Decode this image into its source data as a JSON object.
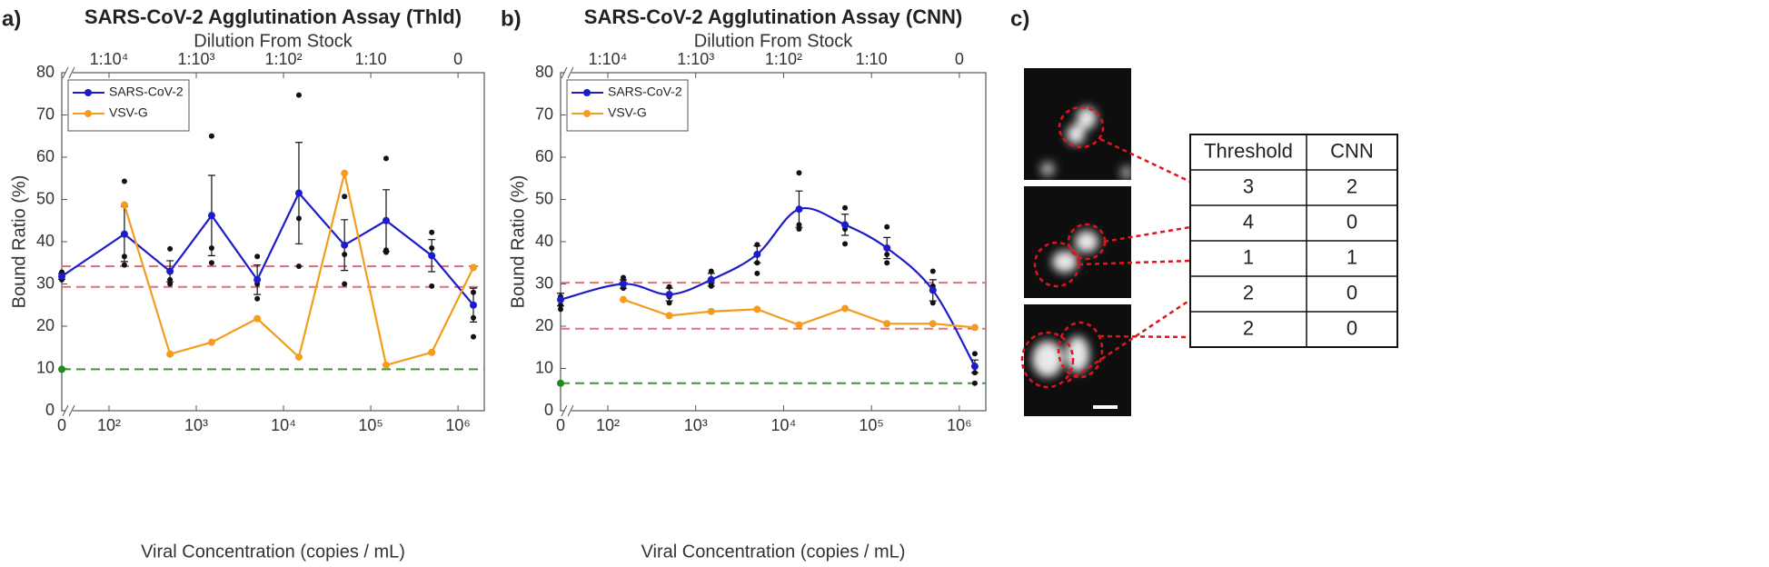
{
  "chart_data": [
    {
      "type": "line",
      "panel_label": "a)",
      "title": "SARS-CoV-2 Agglutination Assay (Thld)",
      "x2_label": "Dilution From Stock",
      "xlabel": "Viral Concentration (copies / mL)",
      "ylabel": "Bound Ratio (%)",
      "xscale": "log",
      "x_break": true,
      "x": [
        0,
        150,
        500,
        1500,
        5000,
        15000,
        50000,
        150000,
        500000,
        1500000
      ],
      "xlim": [
        0,
        2000000
      ],
      "xticks": [
        0,
        {
          "value": 100,
          "label": "10²"
        },
        {
          "value": 1000,
          "label": "10³"
        },
        {
          "value": 10000,
          "label": "10⁴"
        },
        {
          "value": 100000,
          "label": "10⁵"
        },
        {
          "value": 1000000,
          "label": "10⁶"
        }
      ],
      "x2lim": [
        0,
        2
      ],
      "x2ticks": [
        {
          "value": 0.0001,
          "label": "1:10⁴"
        },
        {
          "value": 0.001,
          "label": "1:10³"
        },
        {
          "value": 0.01,
          "label": "1:10²"
        },
        {
          "value": 0.1,
          "label": "1:10"
        },
        {
          "value": 1,
          "label": "0"
        }
      ],
      "ylim": [
        0,
        80
      ],
      "yticks": [
        0,
        10,
        20,
        30,
        40,
        50,
        60,
        70,
        80
      ],
      "legend": "upper left",
      "series": [
        {
          "name": "SARS-CoV-2",
          "color": "#1c1cc8",
          "smooth": false,
          "values": [
            31.8,
            41.8,
            33,
            46.2,
            31,
            51.5,
            39.2,
            45,
            36.7,
            25
          ],
          "errors": [
            0.7,
            6.5,
            2.5,
            9.5,
            3.5,
            12,
            6,
            7.3,
            3.8,
            4
          ],
          "replicates": [
            [
              31,
              32.3,
              32.8
            ],
            [
              54.3,
              34.5,
              36.5
            ],
            [
              38.3,
              30,
              31
            ],
            [
              65,
              38.5,
              35
            ],
            [
              36.5,
              26.5,
              30
            ],
            [
              74.7,
              45.5,
              34.2
            ],
            [
              50.7,
              37,
              30
            ],
            [
              59.7,
              38,
              37.5
            ],
            [
              42.2,
              38.5,
              29.5
            ],
            [
              28,
              22,
              17.5
            ]
          ]
        },
        {
          "name": "VSV-G",
          "color": "#f39c1e",
          "smooth": false,
          "values": [
            null,
            48.7,
            13.4,
            16.2,
            21.8,
            12.7,
            56.2,
            10.8,
            13.8,
            33.9
          ]
        }
      ],
      "reference_lines": [
        {
          "value": 34.2,
          "color": "#e0707a"
        },
        {
          "value": 29.3,
          "color": "#e0707a"
        },
        {
          "value": 9.8,
          "color": "#3a9a3a"
        }
      ],
      "control": {
        "x": 0,
        "value": 9.8,
        "color": "#1e8a1e"
      }
    },
    {
      "type": "line",
      "panel_label": "b)",
      "title": "SARS-CoV-2 Agglutination Assay (CNN)",
      "x2_label": "Dilution From Stock",
      "xlabel": "Viral Concentration (copies / mL)",
      "ylabel": "Bound Ratio (%)",
      "xscale": "log",
      "x_break": true,
      "x": [
        0,
        150,
        500,
        1500,
        5000,
        15000,
        50000,
        150000,
        500000,
        1500000
      ],
      "xlim": [
        0,
        2000000
      ],
      "xticks": [
        0,
        {
          "value": 100,
          "label": "10²"
        },
        {
          "value": 1000,
          "label": "10³"
        },
        {
          "value": 10000,
          "label": "10⁴"
        },
        {
          "value": 100000,
          "label": "10⁵"
        },
        {
          "value": 1000000,
          "label": "10⁶"
        }
      ],
      "x2lim": [
        0,
        2
      ],
      "x2ticks": [
        {
          "value": 0.0001,
          "label": "1:10⁴"
        },
        {
          "value": 0.001,
          "label": "1:10³"
        },
        {
          "value": 0.01,
          "label": "1:10²"
        },
        {
          "value": 0.1,
          "label": "1:10"
        },
        {
          "value": 1,
          "label": "0"
        }
      ],
      "ylim": [
        0,
        80
      ],
      "yticks": [
        0,
        10,
        20,
        30,
        40,
        50,
        60,
        70,
        80
      ],
      "legend": "upper left",
      "series": [
        {
          "name": "SARS-CoV-2",
          "color": "#1c1cc8",
          "smooth": true,
          "values": [
            26.3,
            30,
            27.5,
            31,
            37,
            47.7,
            44,
            38.5,
            28.5,
            10.5
          ],
          "errors": [
            1.5,
            1,
            1.5,
            1.5,
            2,
            4.3,
            2.5,
            2.5,
            2.5,
            1.5
          ],
          "replicates": [
            [
              24,
              25,
              27
            ],
            [
              31.5,
              30.5,
              29
            ],
            [
              29.3,
              25.5,
              27
            ],
            [
              33,
              30,
              29.5
            ],
            [
              39.3,
              35,
              32.5
            ],
            [
              56.3,
              44,
              43
            ],
            [
              48,
              43,
              39.5
            ],
            [
              43.5,
              37,
              35
            ],
            [
              33,
              29.5,
              25.5
            ],
            [
              13.5,
              9,
              6.5
            ]
          ]
        },
        {
          "name": "VSV-G",
          "color": "#f39c1e",
          "smooth": false,
          "values": [
            null,
            26.3,
            22.5,
            23.5,
            24,
            20.3,
            24.2,
            20.6,
            20.6,
            19.7
          ]
        }
      ],
      "reference_lines": [
        {
          "value": 30.3,
          "color": "#e0707a"
        },
        {
          "value": 19.4,
          "color": "#e0707a"
        },
        {
          "value": 6.5,
          "color": "#3a9a3a"
        }
      ],
      "control": {
        "x": 0,
        "value": 6.5,
        "color": "#1e8a1e"
      }
    }
  ],
  "panel_c": {
    "label": "c)",
    "table": {
      "header": [
        "Threshold",
        "CNN"
      ],
      "rows": [
        [
          3,
          2
        ],
        [
          4,
          0
        ],
        [
          1,
          1
        ],
        [
          2,
          0
        ],
        [
          2,
          0
        ]
      ]
    }
  }
}
